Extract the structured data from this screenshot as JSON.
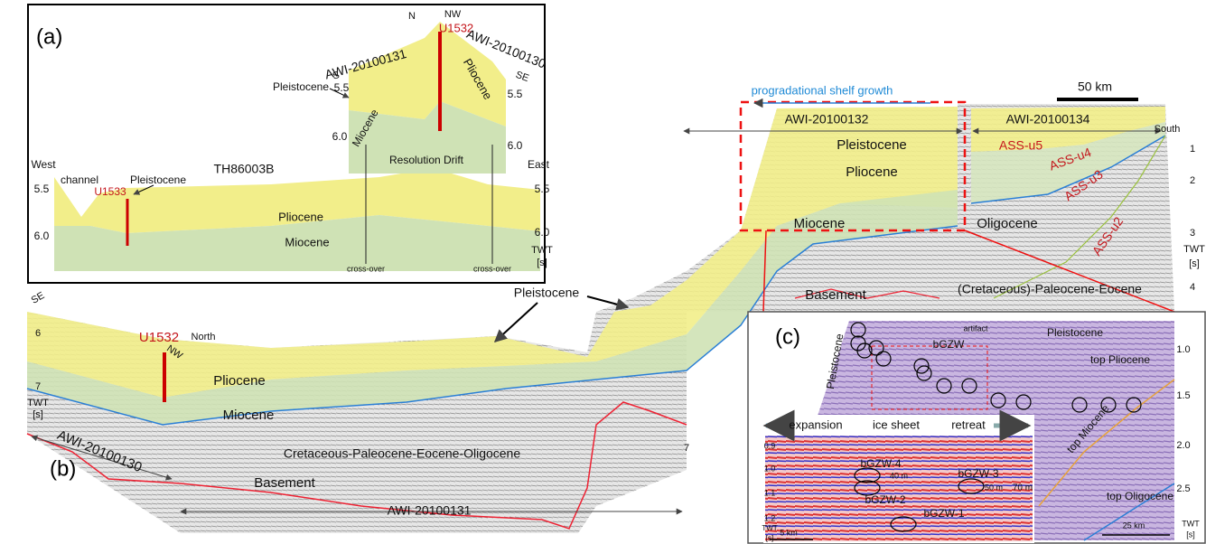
{
  "panel_a": {
    "label": "(a)",
    "texts": [
      "S",
      "AWI-20100131",
      "N",
      "NW",
      "U1532",
      "AWI-20100130",
      "SE",
      "Pleistocene",
      "5.5",
      "Pliocene",
      "5.5",
      "6.0",
      "Miocene",
      "6.0",
      "Resolution Drift",
      "TH86003B",
      "West",
      "East",
      "channel",
      "Pleistocene",
      "U1533",
      "5.5",
      "5.5",
      "Pliocene",
      "6.0",
      "6.0",
      "Miocene",
      "TWT",
      "[s]",
      "cross-over",
      "cross-over"
    ]
  },
  "panel_b": {
    "label": "(b)",
    "texts": [
      "SE",
      "6",
      "U1532",
      "North",
      "NW",
      "Pleistocene",
      "Pliocene",
      "7",
      "TWT",
      "[s]",
      "Miocene",
      "Cretaceous-Paleocene-Eocene-Oligocene",
      "7",
      "AWI-20100130",
      "Basement",
      "AWI-20100131",
      "progradational shelf growth",
      "50 km",
      "AWI-20100132",
      "AWI-20100134",
      "South",
      "Pleistocene",
      "Pliocene",
      "ASS-u5",
      "ASS-u4",
      "ASS-u3",
      "ASS-u2",
      "1",
      "2",
      "Miocene",
      "Oligocene",
      "3",
      "TWT",
      "[s]",
      "(Cretaceous)-Paleocene-Eocene",
      "4",
      "Basement"
    ]
  },
  "panel_c": {
    "label": "(c)",
    "texts": [
      "artifact",
      "bGZW",
      "Pleistocene",
      "1.0",
      "top Pliocene",
      "Pleistocene",
      "1.5",
      "expansion",
      "ice sheet",
      "retreat",
      "2.0",
      "top Miocene",
      "0.9",
      "1.0",
      "bGZW-4",
      "40 m",
      "bGZW-3",
      "50 m",
      "70 m",
      "1.1",
      "bGZW-2",
      "2.5",
      "top Oligocene",
      "1.2",
      "bGZW-1",
      "TWT",
      "[s]",
      "TWT",
      "[s]",
      "5 km",
      "25 km"
    ]
  }
}
